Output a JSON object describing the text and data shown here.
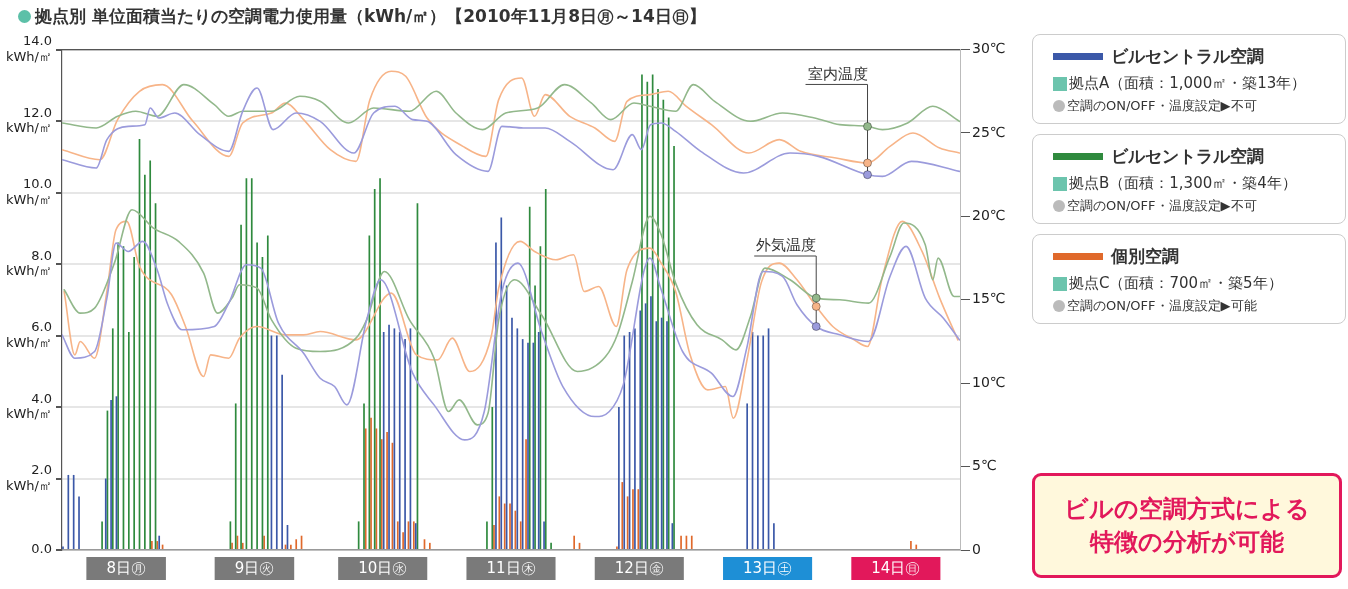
{
  "chart_data": {
    "type": "bar",
    "title": "拠点別 単位面積当たりの空調電力使用量（kWh/㎡）【2010年11月8日㊊～14日㊐】",
    "x": [
      "2010-11-08T00:30",
      "2010-11-08T01:30",
      "2010-11-08T02:30",
      "2010-11-08T03:30",
      "2010-11-08T04:30",
      "2010-11-08T05:30",
      "2010-11-08T06:30",
      "2010-11-08T07:30",
      "2010-11-08T08:30",
      "2010-11-08T09:30",
      "2010-11-08T10:30",
      "2010-11-08T11:30",
      "2010-11-08T12:30",
      "2010-11-08T13:30",
      "2010-11-08T14:30",
      "2010-11-08T15:30",
      "2010-11-08T16:30",
      "2010-11-08T17:30",
      "2010-11-08T18:30",
      "2010-11-08T19:30",
      "2010-11-08T20:30",
      "2010-11-08T21:30",
      "2010-11-08T22:30",
      "2010-11-08T23:30",
      "2010-11-09T00:30",
      "2010-11-09T01:30",
      "2010-11-09T02:30",
      "2010-11-09T03:30",
      "2010-11-09T04:30",
      "2010-11-09T05:30",
      "2010-11-09T06:30",
      "2010-11-09T07:30",
      "2010-11-09T08:30",
      "2010-11-09T09:30",
      "2010-11-09T10:30",
      "2010-11-09T11:30",
      "2010-11-09T12:30",
      "2010-11-09T13:30",
      "2010-11-09T14:30",
      "2010-11-09T15:30",
      "2010-11-09T16:30",
      "2010-11-09T17:30",
      "2010-11-09T18:30",
      "2010-11-09T19:30",
      "2010-11-09T20:30",
      "2010-11-09T21:30",
      "2010-11-09T22:30",
      "2010-11-09T23:30",
      "2010-11-10T00:30",
      "2010-11-10T01:30",
      "2010-11-10T02:30",
      "2010-11-10T03:30",
      "2010-11-10T04:30",
      "2010-11-10T05:30",
      "2010-11-10T06:30",
      "2010-11-10T07:30",
      "2010-11-10T08:30",
      "2010-11-10T09:30",
      "2010-11-10T10:30",
      "2010-11-10T11:30",
      "2010-11-10T12:30",
      "2010-11-10T13:30",
      "2010-11-10T14:30",
      "2010-11-10T15:30",
      "2010-11-10T16:30",
      "2010-11-10T17:30",
      "2010-11-10T18:30",
      "2010-11-10T19:30",
      "2010-11-10T20:30",
      "2010-11-10T21:30",
      "2010-11-10T22:30",
      "2010-11-10T23:30",
      "2010-11-11T00:30",
      "2010-11-11T01:30",
      "2010-11-11T02:30",
      "2010-11-11T03:30",
      "2010-11-11T04:30",
      "2010-11-11T05:30",
      "2010-11-11T06:30",
      "2010-11-11T07:30",
      "2010-11-11T08:30",
      "2010-11-11T09:30",
      "2010-11-11T10:30",
      "2010-11-11T11:30",
      "2010-11-11T12:30",
      "2010-11-11T13:30",
      "2010-11-11T14:30",
      "2010-11-11T15:30",
      "2010-11-11T16:30",
      "2010-11-11T17:30",
      "2010-11-11T18:30",
      "2010-11-11T19:30",
      "2010-11-11T20:30",
      "2010-11-11T21:30",
      "2010-11-11T22:30",
      "2010-11-11T23:30",
      "2010-11-12T00:30",
      "2010-11-12T01:30",
      "2010-11-12T02:30",
      "2010-11-12T03:30",
      "2010-11-12T04:30",
      "2010-11-12T05:30",
      "2010-11-12T06:30",
      "2010-11-12T07:30",
      "2010-11-12T08:30",
      "2010-11-12T09:30",
      "2010-11-12T10:30",
      "2010-11-12T11:30",
      "2010-11-12T12:30",
      "2010-11-12T13:30",
      "2010-11-12T14:30",
      "2010-11-12T15:30",
      "2010-11-12T16:30",
      "2010-11-12T17:30",
      "2010-11-12T18:30",
      "2010-11-12T19:30",
      "2010-11-12T20:30",
      "2010-11-12T21:30",
      "2010-11-12T22:30",
      "2010-11-12T23:30",
      "2010-11-13T00:30",
      "2010-11-13T01:30",
      "2010-11-13T02:30",
      "2010-11-13T03:30",
      "2010-11-13T04:30",
      "2010-11-13T05:30",
      "2010-11-13T06:30",
      "2010-11-13T07:30",
      "2010-11-13T08:30",
      "2010-11-13T09:30",
      "2010-11-13T10:30",
      "2010-11-13T11:30",
      "2010-11-13T12:30",
      "2010-11-13T13:30",
      "2010-11-13T14:30",
      "2010-11-13T15:30",
      "2010-11-13T16:30",
      "2010-11-13T17:30",
      "2010-11-13T18:30",
      "2010-11-13T19:30",
      "2010-11-13T20:30",
      "2010-11-13T21:30",
      "2010-11-13T22:30",
      "2010-11-13T23:30",
      "2010-11-14T00:30",
      "2010-11-14T01:30",
      "2010-11-14T02:30",
      "2010-11-14T03:30",
      "2010-11-14T04:30",
      "2010-11-14T05:30",
      "2010-11-14T06:30",
      "2010-11-14T07:30",
      "2010-11-14T08:30",
      "2010-11-14T09:30",
      "2010-11-14T10:30",
      "2010-11-14T11:30",
      "2010-11-14T12:30",
      "2010-11-14T13:30",
      "2010-11-14T14:30",
      "2010-11-14T15:30",
      "2010-11-14T16:30",
      "2010-11-14T17:30",
      "2010-11-14T18:30",
      "2010-11-14T19:30",
      "2010-11-14T20:30",
      "2010-11-14T21:30",
      "2010-11-14T22:30",
      "2010-11-14T23:30"
    ],
    "xlim": [
      "2010-11-08T00:00",
      "2010-11-15T00:00"
    ],
    "xticks": [
      {
        "value": "2010-11-08T12:00",
        "label": "8日㊊"
      },
      {
        "value": "2010-11-09T12:00",
        "label": "9日㊋"
      },
      {
        "value": "2010-11-10T12:00",
        "label": "10日㊌"
      },
      {
        "value": "2010-11-11T12:00",
        "label": "11日㊍"
      },
      {
        "value": "2010-11-12T12:00",
        "label": "12日㊎"
      },
      {
        "value": "2010-11-13T12:00",
        "label": "13日㊏"
      },
      {
        "value": "2010-11-14T12:00",
        "label": "14日㊐"
      }
    ],
    "ylim": [
      0,
      14
    ],
    "yticks": [
      {
        "value": 0,
        "label": "0.0"
      },
      {
        "value": 2,
        "label": "2.0\nkWh/㎡"
      },
      {
        "value": 4,
        "label": "4.0\nkWh/㎡"
      },
      {
        "value": 6,
        "label": "6.0\nkWh/㎡"
      },
      {
        "value": 8,
        "label": "8.0\nkWh/㎡"
      },
      {
        "value": 10,
        "label": "10.0\nkWh/㎡"
      },
      {
        "value": 12,
        "label": "12.0\nkWh/㎡"
      },
      {
        "value": 14,
        "label": "14.0\nkWh/㎡"
      }
    ],
    "y2lim": [
      0,
      30
    ],
    "y2ticks": [
      0,
      {
        "value": 5,
        "label": "5℃"
      },
      {
        "value": 10,
        "label": "10℃"
      },
      {
        "value": 15,
        "label": "15℃"
      },
      {
        "value": 20,
        "label": "20℃"
      },
      {
        "value": 25,
        "label": "25℃"
      },
      {
        "value": 30,
        "label": "30℃"
      }
    ],
    "grid": "y",
    "legend": "right",
    "series": [
      {
        "name": "ビルセントラル空調",
        "color": "#3b58a8",
        "values": [
          0.1,
          2.1,
          2.1,
          1.5,
          0,
          0,
          0,
          0,
          2.0,
          4.2,
          4.3,
          null,
          null,
          null,
          null,
          null,
          null,
          null,
          0.4,
          0,
          0,
          0,
          0,
          0,
          0,
          0,
          0,
          0,
          0,
          0,
          0,
          null,
          null,
          null,
          null,
          null,
          null,
          null,
          null,
          6.0,
          6.0,
          4.9,
          0.7,
          0,
          0,
          0,
          0,
          0,
          0,
          0,
          0,
          0,
          0,
          0,
          0,
          null,
          null,
          null,
          null,
          null,
          6.1,
          6.3,
          6.2,
          6.1,
          5.9,
          6.2,
          0.75,
          0,
          0,
          0,
          0,
          0,
          0,
          0,
          0,
          0,
          0,
          0,
          0,
          null,
          null,
          8.6,
          9.3,
          7.4,
          6.5,
          6.2,
          5.9,
          5.8,
          5.8,
          6.1,
          0.8,
          0,
          0,
          0,
          0,
          0,
          0,
          0,
          0,
          0,
          0,
          0,
          0,
          0,
          4.0,
          6.0,
          6.1,
          6.2,
          6.7,
          6.9,
          7.1,
          6.4,
          6.5,
          6.4,
          0.75,
          0,
          0,
          0,
          0,
          0,
          0,
          0,
          0,
          0,
          0,
          0,
          0,
          0,
          4.1,
          6.1,
          6.0,
          6.0,
          6.2,
          0.75,
          0,
          0,
          0,
          0,
          0,
          0,
          0,
          0,
          0,
          0,
          0,
          0,
          0,
          0,
          0,
          0,
          0,
          0,
          0,
          0,
          0,
          0,
          0,
          0,
          0,
          0,
          0,
          0,
          0,
          0,
          0,
          0,
          0,
          0
        ]
      },
      {
        "name": "ビルセントラル空調",
        "color": "#2f8a3e",
        "values": [
          0,
          0,
          0,
          0,
          0,
          0,
          0,
          0.8,
          3.9,
          6.2,
          8.6,
          8.5,
          6.1,
          8.2,
          11.5,
          10.5,
          10.9,
          9.7,
          0,
          0,
          0,
          0,
          0,
          0,
          0,
          0,
          0,
          0,
          0,
          0,
          0,
          0.8,
          4.1,
          9.1,
          10.4,
          10.4,
          8.6,
          8.2,
          8.8,
          null,
          null,
          null,
          null,
          0,
          0,
          0,
          0,
          0,
          0,
          0,
          0,
          0,
          0,
          0,
          0,
          0.8,
          4.1,
          8.8,
          10.1,
          10.4,
          null,
          null,
          null,
          null,
          null,
          null,
          9.7,
          0,
          0,
          0,
          0,
          0,
          0,
          0,
          0,
          0,
          0,
          0,
          0,
          0.8,
          4.0,
          null,
          null,
          null,
          null,
          null,
          null,
          9.6,
          7.4,
          8.5,
          10.1,
          0.2,
          0,
          0,
          0,
          0,
          0,
          0,
          0,
          0,
          0,
          0,
          0,
          0,
          null,
          null,
          null,
          null,
          13.3,
          13.1,
          13.3,
          12.9,
          12.6,
          12.1,
          11.3,
          0,
          0,
          0,
          0,
          0,
          0,
          0,
          0,
          0,
          0,
          0,
          0,
          0,
          0,
          0,
          0,
          0,
          0,
          0,
          0,
          0,
          0,
          0,
          0,
          0,
          0,
          0,
          0,
          0,
          0,
          0,
          0,
          0,
          0,
          0,
          0,
          0,
          0,
          0,
          0,
          0,
          0,
          0,
          0,
          0,
          0,
          0,
          0,
          0,
          0,
          0,
          0,
          0
        ]
      },
      {
        "name": "個別空調",
        "color": "#e0692b",
        "values": [
          0,
          0,
          0,
          0,
          0,
          0,
          0,
          0,
          0,
          0,
          0,
          0,
          0,
          0,
          0,
          0,
          0.25,
          0.25,
          0.15,
          0,
          0,
          0,
          0,
          0,
          0,
          0,
          0,
          0,
          0,
          0,
          0,
          0.2,
          0.4,
          0.2,
          0,
          0,
          0,
          0.4,
          0,
          0,
          0,
          0.15,
          0.15,
          0.3,
          0.4,
          0,
          0,
          0,
          0,
          0,
          0,
          0,
          0,
          0,
          0,
          0,
          3.4,
          3.7,
          3.4,
          3.1,
          3.3,
          3.0,
          0.8,
          0.5,
          0.8,
          0.8,
          0,
          0.3,
          0.2,
          0,
          0,
          0,
          0,
          0,
          0,
          0,
          0,
          0,
          0,
          0,
          0.7,
          1.5,
          1.3,
          1.3,
          1.1,
          0.8,
          3.1,
          null,
          null,
          null,
          null,
          0,
          0,
          0,
          0,
          0.4,
          0.2,
          0,
          0,
          0,
          0,
          0,
          0,
          0.1,
          1.9,
          1.5,
          1.7,
          1.7,
          null,
          null,
          null,
          null,
          null,
          null,
          null,
          0.4,
          0.4,
          0.4,
          0,
          0,
          0,
          0,
          0,
          0,
          0,
          0,
          0,
          0,
          0,
          0,
          0,
          0,
          0,
          0,
          0,
          0,
          0,
          0,
          0,
          0,
          0,
          0,
          0,
          0,
          0,
          0,
          0,
          0,
          0,
          0,
          0,
          0,
          0,
          0,
          0,
          0,
          0,
          0,
          0.25,
          0.15,
          0,
          0,
          0,
          0,
          0,
          0,
          0,
          0
        ]
      },
      {
        "type": "line",
        "axis": "y2",
        "color": "#9b9bdc",
        "x": [
          "2010-11-08T00:00",
          "2010-11-08T06:24",
          "2010-11-08T08:24",
          "2010-11-08T12:24",
          "2010-11-08T15:30",
          "2010-11-08T16:30",
          "2010-11-08T18:06",
          "2010-11-08T21:06",
          "2010-11-09T01:48",
          "2010-11-09T07:12",
          "2010-11-09T09:48",
          "2010-11-09T12:30",
          "2010-11-09T15:30",
          "2010-11-09T19:48",
          "2010-11-10T00:18",
          "2010-11-10T06:36",
          "2010-11-10T10:18",
          "2010-11-10T14:18",
          "2010-11-10T17:36",
          "2010-11-10T20:18",
          "2010-11-11T01:42",
          "2010-11-11T07:42",
          "2010-11-11T10:18",
          "2010-11-11T14:18",
          "2010-11-11T18:24",
          "2010-11-11T23:00",
          "2010-11-12T07:06",
          "2010-11-12T10:42",
          "2010-11-12T12:24",
          "2010-11-12T14:06",
          "2010-11-12T16:06",
          "2010-11-12T18:48",
          "2010-11-12T23:30",
          "2010-11-13T07:30",
          "2010-11-13T16:12",
          "2010-11-13T21:30",
          "2010-11-14T06:42",
          "2010-11-14T09:30",
          "2010-11-14T14:54",
          "2010-11-14T23:54"
        ],
        "values": [
          23.4,
          22.9,
          24.6,
          25.4,
          25.5,
          26.5,
          25.9,
          26.2,
          24.9,
          23.9,
          26.3,
          27.7,
          25.2,
          26.2,
          25.7,
          23.8,
          26.2,
          26.6,
          25.8,
          25.7,
          23.7,
          22.7,
          25.4,
          25.3,
          25.3,
          24.5,
          22.8,
          24.9,
          24.0,
          25.5,
          25.6,
          25.1,
          23.9,
          22.6,
          23.8,
          23.6,
          22.5,
          22.4,
          23.3,
          22.7
        ]
      },
      {
        "type": "line",
        "axis": "y2",
        "color": "#92b88b",
        "x": [
          "2010-11-08T00:00",
          "2010-11-08T06:24",
          "2010-11-08T10:24",
          "2010-11-08T13:48",
          "2010-11-08T17:48",
          "2010-11-08T22:48",
          "2010-11-09T04:30",
          "2010-11-09T07:12",
          "2010-11-09T09:48",
          "2010-11-09T15:12",
          "2010-11-09T20:30",
          "2010-11-10T00:18",
          "2010-11-10T05:36",
          "2010-11-10T10:18",
          "2010-11-10T17:00",
          "2010-11-10T22:00",
          "2010-11-11T01:42",
          "2010-11-11T06:42",
          "2010-11-11T11:00",
          "2010-11-11T17:00",
          "2010-11-11T22:00",
          "2010-11-12T03:00",
          "2010-11-12T06:42",
          "2010-11-12T11:00",
          "2010-11-12T14:00",
          "2010-11-12T18:48",
          "2010-11-12T22:06",
          "2010-11-13T02:06",
          "2010-11-13T08:48",
          "2010-11-13T14:48",
          "2010-11-13T20:48",
          "2010-11-14T01:30",
          "2010-11-14T06:42",
          "2010-11-14T09:30",
          "2010-11-14T14:12",
          "2010-11-14T18:54",
          "2010-11-14T23:54"
        ],
        "values": [
          25.6,
          25.3,
          26.0,
          26.3,
          26.0,
          27.9,
          26.7,
          26.0,
          26.3,
          26.3,
          27.2,
          26.9,
          25.6,
          26.5,
          26.3,
          27.5,
          26.2,
          25.2,
          26.2,
          26.5,
          27.9,
          26.8,
          25.8,
          26.8,
          26.6,
          26.3,
          27.9,
          26.9,
          25.7,
          26.2,
          25.9,
          25.5,
          25.4,
          25.2,
          25.6,
          26.6,
          25.7
        ]
      },
      {
        "type": "line",
        "axis": "y2",
        "color": "#f7b488",
        "x": [
          "2010-11-08T00:00",
          "2010-11-08T07:06",
          "2010-11-08T10:24",
          "2010-11-08T14:30",
          "2010-11-08T18:48",
          "2010-11-09T00:30",
          "2010-11-09T07:12",
          "2010-11-09T09:48",
          "2010-11-09T15:12",
          "2010-11-09T17:48",
          "2010-11-09T21:12",
          "2010-11-10T02:12",
          "2010-11-10T07:00",
          "2010-11-10T09:36",
          "2010-11-10T13:36",
          "2010-11-10T16:18",
          "2010-11-10T20:18",
          "2010-11-11T03:00",
          "2010-11-11T07:18",
          "2010-11-11T09:42",
          "2010-11-11T14:00",
          "2010-11-11T16:24",
          "2010-11-11T18:24",
          "2010-11-11T23:00",
          "2010-11-12T03:42",
          "2010-11-12T07:24",
          "2010-11-12T09:42",
          "2010-11-12T14:00",
          "2010-11-12T17:24",
          "2010-11-12T20:48",
          "2010-11-13T01:30",
          "2010-11-13T08:30",
          "2010-11-13T14:12",
          "2010-11-13T18:12",
          "2010-11-14T00:48",
          "2010-11-14T06:42",
          "2010-11-14T10:54",
          "2010-11-14T15:12",
          "2010-11-14T20:12",
          "2010-11-14T23:54"
        ],
        "values": [
          24.0,
          23.4,
          25.8,
          27.5,
          27.9,
          25.7,
          23.6,
          25.6,
          26.2,
          26.8,
          25.8,
          24.0,
          23.3,
          27.0,
          28.7,
          28.4,
          25.9,
          24.2,
          23.6,
          27.0,
          28.3,
          26.0,
          27.3,
          26.0,
          25.3,
          24.5,
          26.9,
          27.3,
          27.5,
          26.6,
          25.5,
          23.8,
          24.6,
          23.9,
          23.5,
          23.2,
          24.2,
          25.0,
          24.1,
          23.8
        ]
      },
      {
        "type": "line",
        "axis": "y2",
        "color": "#9b9bdc",
        "x": [
          "2010-11-08T00:00",
          "2010-11-08T02:24",
          "2010-11-08T06:06",
          "2010-11-08T08:24",
          "2010-11-08T10:06",
          "2010-11-08T12:24",
          "2010-11-08T15:06",
          "2010-11-08T17:48",
          "2010-11-08T19:48",
          "2010-11-08T22:30",
          "2010-11-09T04:30",
          "2010-11-09T07:12",
          "2010-11-09T10:30",
          "2010-11-09T13:12",
          "2010-11-09T16:30",
          "2010-11-09T21:12",
          "2010-11-10T00:18",
          "2010-11-10T03:00",
          "2010-11-10T05:18",
          "2010-11-10T09:00",
          "2010-11-10T11:36",
          "2010-11-10T17:36",
          "2010-11-10T21:36",
          "2010-11-11T03:18",
          "2010-11-11T07:00",
          "2010-11-11T10:18",
          "2010-11-11T13:18",
          "2010-11-11T17:42",
          "2010-11-11T21:42",
          "2010-11-12T03:42",
          "2010-11-12T06:24",
          "2010-11-12T09:00",
          "2010-11-12T14:00",
          "2010-11-12T16:06",
          "2010-11-12T20:06",
          "2010-11-13T01:30",
          "2010-11-13T05:30",
          "2010-11-13T08:06",
          "2010-11-13T11:06",
          "2010-11-13T14:48",
          "2010-11-13T17:30",
          "2010-11-13T21:06",
          "2010-11-14T01:30",
          "2010-11-14T06:54",
          "2010-11-14T10:54",
          "2010-11-14T13:54",
          "2010-11-14T17:30",
          "2010-11-14T20:54",
          "2010-11-14T23:54"
        ],
        "values": [
          12.9,
          11.5,
          11.9,
          15.1,
          18.4,
          17.9,
          18.5,
          16.8,
          14.7,
          13.2,
          13.4,
          14.8,
          17.1,
          16.9,
          13.6,
          11.8,
          10.3,
          9.8,
          8.7,
          13.8,
          16.2,
          10.6,
          8.7,
          6.6,
          8.3,
          15.5,
          17.2,
          13.1,
          9.8,
          8.0,
          8.3,
          9.9,
          17.5,
          15.6,
          11.9,
          10.6,
          9.2,
          12.1,
          16.7,
          16.4,
          14.7,
          13.4,
          12.9,
          12.5,
          16.4,
          18.2,
          15.1,
          13.9,
          12.6
        ]
      },
      {
        "type": "line",
        "axis": "y2",
        "color": "#92b88b",
        "x": [
          "2010-11-08T00:24",
          "2010-11-08T03:24",
          "2010-11-08T06:06",
          "2010-11-08T09:48",
          "2010-11-08T13:06",
          "2010-11-08T17:06",
          "2010-11-08T21:48",
          "2010-11-09T02:30",
          "2010-11-09T05:06",
          "2010-11-09T07:48",
          "2010-11-09T09:12",
          "2010-11-09T12:30",
          "2010-11-09T15:12",
          "2010-11-09T19:48",
          "2010-11-10T00:18",
          "2010-11-10T07:00",
          "2010-11-10T09:00",
          "2010-11-10T12:18",
          "2010-11-10T17:00",
          "2010-11-10T21:36",
          "2010-11-11T00:18",
          "2010-11-11T02:18",
          "2010-11-11T05:42",
          "2010-11-11T07:42",
          "2010-11-11T09:42",
          "2010-11-11T12:42",
          "2010-11-11T17:42",
          "2010-11-12T00:24",
          "2010-11-12T05:42",
          "2010-11-12T08:00",
          "2010-11-12T10:42",
          "2010-11-12T14:00",
          "2010-11-12T16:06",
          "2010-11-12T18:48",
          "2010-11-12T22:48",
          "2010-11-13T03:30",
          "2010-11-13T06:06",
          "2010-11-13T08:48",
          "2010-11-13T11:30",
          "2010-11-13T16:12",
          "2010-11-13T21:06",
          "2010-11-14T01:30",
          "2010-11-14T06:54",
          "2010-11-14T10:54",
          "2010-11-14T13:30",
          "2010-11-14T17:30",
          "2010-11-14T18:54",
          "2010-11-14T19:54",
          "2010-11-14T22:54",
          "2010-11-14T23:54"
        ],
        "values": [
          15.6,
          14.2,
          14.5,
          17.2,
          20.4,
          19.3,
          18.5,
          16.6,
          14.2,
          15.1,
          15.9,
          15.7,
          13.8,
          12.1,
          11.9,
          12.7,
          13.8,
          16.7,
          13.8,
          11.5,
          8.3,
          9.0,
          7.5,
          8.2,
          13.8,
          16.2,
          14.1,
          10.7,
          11.6,
          13.0,
          16.1,
          20.0,
          18.9,
          16.0,
          13.5,
          12.6,
          12.0,
          14.0,
          16.9,
          16.2,
          15.1,
          15.0,
          14.8,
          17.6,
          19.6,
          18.3,
          16.2,
          17.5,
          15.2,
          15.2
        ]
      },
      {
        "type": "line",
        "axis": "y2",
        "color": "#f7b488",
        "x": [
          "2010-11-08T00:24",
          "2010-11-08T02:24",
          "2010-11-08T03:24",
          "2010-11-08T06:06",
          "2010-11-08T08:24",
          "2010-11-08T10:06",
          "2010-11-08T12:06",
          "2010-11-08T14:30",
          "2010-11-08T20:30",
          "2010-11-08T23:06",
          "2010-11-09T02:30",
          "2010-11-09T03:48",
          "2010-11-09T07:12",
          "2010-11-09T09:12",
          "2010-11-09T12:30",
          "2010-11-09T17:48",
          "2010-11-09T21:12",
          "2010-11-10T00:18",
          "2010-11-10T07:00",
          "2010-11-10T13:36",
          "2010-11-10T18:18",
          "2010-11-10T22:18",
          "2010-11-11T01:00",
          "2010-11-11T04:18",
          "2010-11-11T08:18",
          "2010-11-11T09:42",
          "2010-11-11T13:42",
          "2010-11-11T16:24",
          "2010-11-11T20:24",
          "2010-11-11T23:42",
          "2010-11-12T01:42",
          "2010-11-12T04:24",
          "2010-11-12T07:42",
          "2010-11-12T09:42",
          "2010-11-12T14:00",
          "2010-11-12T16:06",
          "2010-11-12T18:48",
          "2010-11-12T21:30",
          "2010-11-13T00:48",
          "2010-11-13T04:06",
          "2010-11-13T05:36",
          "2010-11-13T08:06",
          "2010-11-13T10:48",
          "2010-11-13T14:12",
          "2010-11-13T17:30",
          "2010-11-13T21:06",
          "2010-11-14T00:12",
          "2010-11-14T04:12",
          "2010-11-14T06:42",
          "2010-11-14T09:30",
          "2010-11-14T13:12",
          "2010-11-14T16:54",
          "2010-11-14T20:12",
          "2010-11-14T23:36"
        ],
        "values": [
          15.5,
          11.7,
          12.5,
          11.5,
          15.5,
          19.2,
          19.7,
          17.0,
          15.3,
          13.4,
          10.4,
          11.7,
          11.5,
          12.7,
          13.4,
          12.9,
          12.9,
          13.1,
          12.6,
          15.4,
          11.7,
          11.4,
          12.7,
          10.7,
          12.8,
          15.7,
          18.5,
          17.9,
          17.4,
          17.7,
          15.5,
          15.8,
          13.4,
          16.8,
          18.1,
          17.2,
          15.5,
          11.7,
          9.6,
          9.8,
          7.9,
          11.3,
          16.0,
          17.2,
          16.2,
          14.6,
          13.4,
          12.6,
          12.2,
          16.4,
          19.7,
          17.9,
          15.1,
          12.6
        ]
      }
    ],
    "annotations": [
      {
        "text": "室内温度",
        "x": "2010-11-14T06:42",
        "y": 11.85
      },
      {
        "text": "外気温度",
        "x": "2010-11-13T21:06",
        "y": 7.05
      },
      "拠点A（面積：1,000㎡・築13年）",
      "空調のON/OFF・温度設定▶不可",
      "拠点B（面積：1,300㎡・築4年）",
      "空調のON/OFF・温度設定▶不可",
      "拠点C（面積：700㎡・築5年）",
      "空調のON/OFF・温度設定▶可能",
      "ビルの空調方式による特徴の分析が可能"
    ]
  }
}
